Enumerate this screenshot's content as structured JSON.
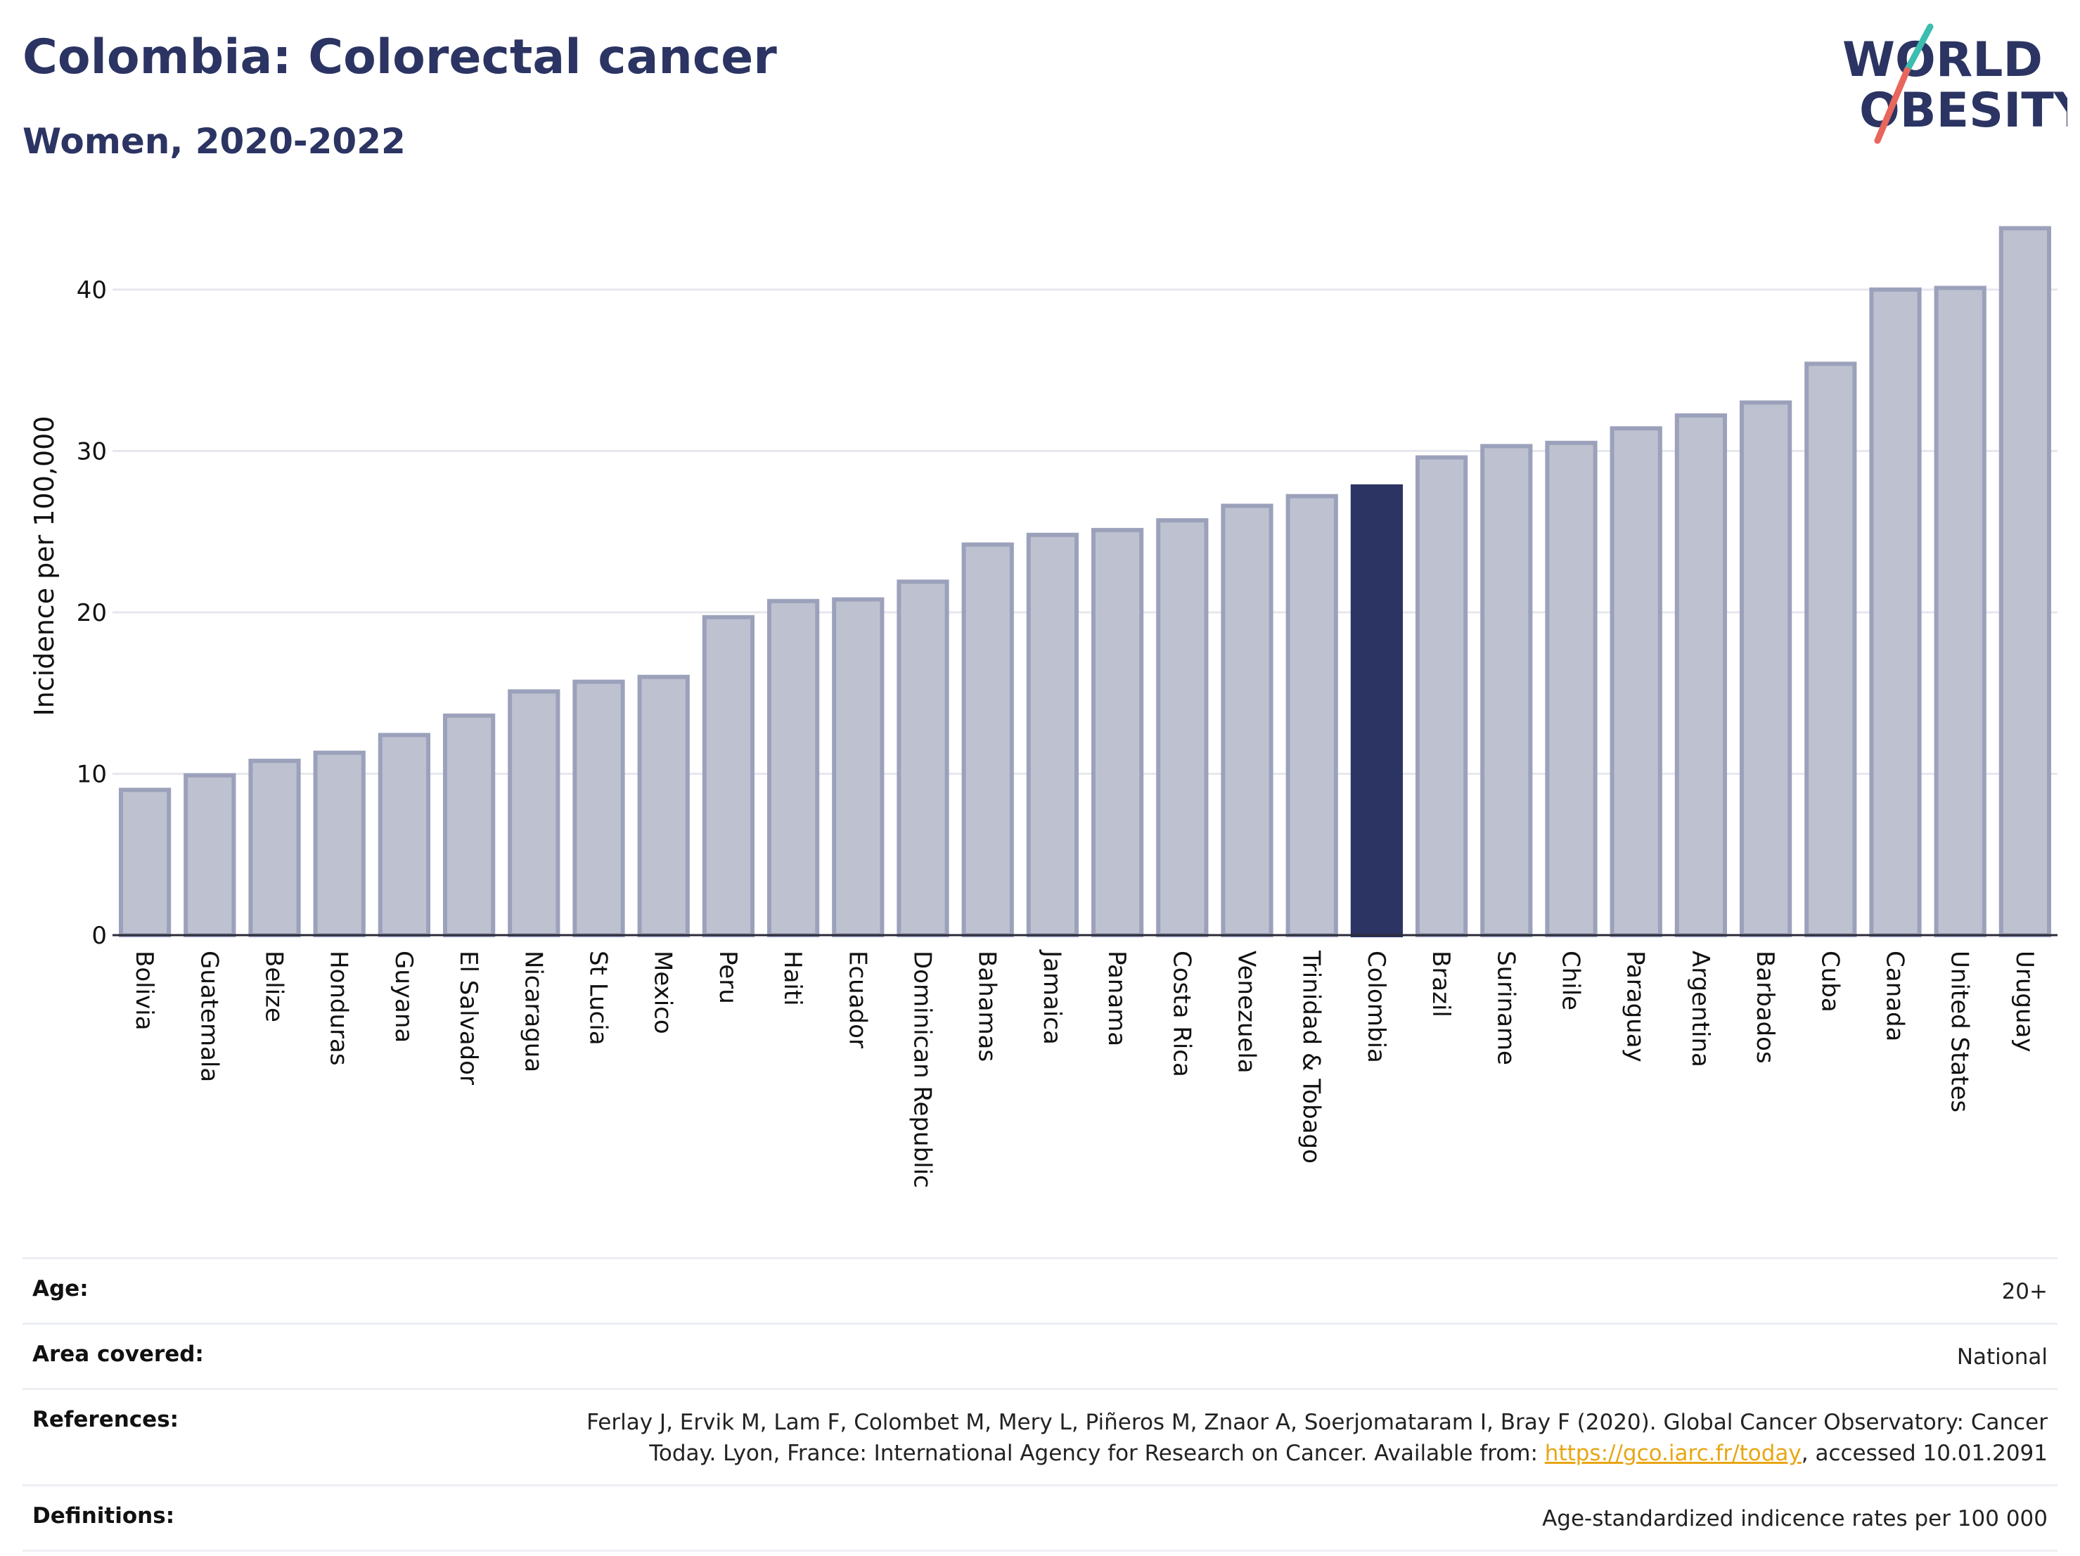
{
  "header": {
    "title": "Colombia: Colorectal cancer",
    "subtitle": "Women, 2020-2022"
  },
  "logo": {
    "line1": "WORLD",
    "line2": "OBESITY",
    "icon": "world-obesity-logo"
  },
  "colors": {
    "highlight": "#2b3462",
    "bar": "#bec2d0",
    "bar_edge": "#9ca1bb",
    "grid": "#e6e7ee",
    "link": "#e8a614",
    "logo_teal": "#3bbdb0",
    "logo_red": "#e8665c"
  },
  "chart_data": {
    "type": "bar",
    "ylabel": "Incidence per 100,000",
    "xlabel": "",
    "ylim": [
      0,
      44
    ],
    "yticks": [
      0,
      10,
      20,
      30,
      40
    ],
    "grid": true,
    "highlight": "Colombia",
    "categories": [
      "Bolivia",
      "Guatemala",
      "Belize",
      "Honduras",
      "Guyana",
      "El Salvador",
      "Nicaragua",
      "St Lucia",
      "Mexico",
      "Peru",
      "Haiti",
      "Ecuador",
      "Dominican Republic",
      "Bahamas",
      "Jamaica",
      "Panama",
      "Costa Rica",
      "Venezuela",
      "Trinidad & Tobago",
      "Colombia",
      "Brazil",
      "Suriname",
      "Chile",
      "Paraguay",
      "Argentina",
      "Barbados",
      "Cuba",
      "Canada",
      "United States",
      "Uruguay"
    ],
    "values": [
      9.0,
      9.9,
      10.8,
      11.3,
      12.4,
      13.6,
      15.1,
      15.7,
      16.0,
      19.7,
      20.7,
      20.8,
      21.9,
      24.2,
      24.8,
      25.1,
      25.7,
      26.6,
      27.2,
      27.8,
      29.6,
      30.3,
      30.5,
      31.4,
      32.2,
      33.0,
      35.4,
      40.0,
      40.1,
      43.8
    ]
  },
  "meta": {
    "age_label": "Age:",
    "age_value": "20+",
    "area_label": "Area covered:",
    "area_value": "National",
    "references_label": "References:",
    "references_text_1": "Ferlay J, Ervik M, Lam F, Colombet M, Mery L, Piñeros M, Znaor A, Soerjomataram I, Bray F (2020). Global Cancer Observatory: Cancer",
    "references_text_2": "Today. Lyon, France: International Agency for Research on Cancer. Available from: ",
    "references_link": "https://gco.iarc.fr/today",
    "references_text_3": ", accessed 10.01.2091",
    "definitions_label": "Definitions:",
    "definitions_value": "Age-standardized indicence rates per 100 000"
  }
}
